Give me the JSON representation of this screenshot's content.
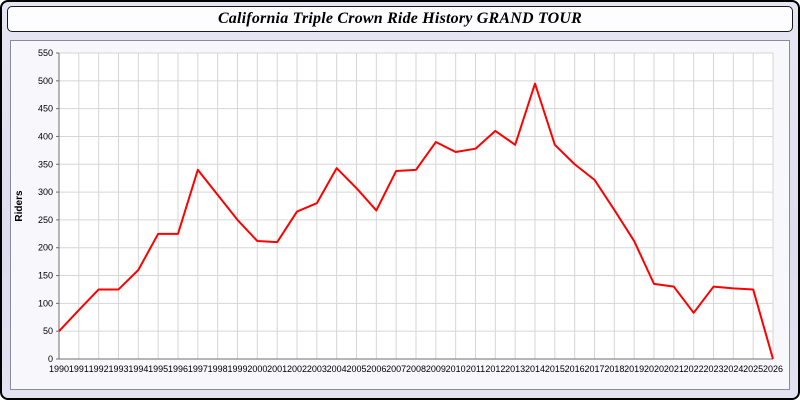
{
  "title": "California Triple Crown Ride History GRAND TOUR",
  "colors": {
    "line": "#ff0000",
    "outer_background": "#e0e0ef",
    "panel_background": "#f7f7fc",
    "plot_background": "#ffffff",
    "grid": "#d6d6d6",
    "axis": "#707070",
    "text": "#000000"
  },
  "chart_data": {
    "type": "line",
    "title": "California Triple Crown Ride History GRAND TOUR",
    "xlabel": "",
    "ylabel": "Riders",
    "ylim": [
      0,
      550
    ],
    "ytick_step": 50,
    "grid": true,
    "legend": "none",
    "x": [
      1990,
      1991,
      1992,
      1993,
      1994,
      1995,
      1996,
      1997,
      1998,
      1999,
      2000,
      2001,
      2002,
      2003,
      2004,
      2005,
      2006,
      2007,
      2008,
      2009,
      2010,
      2011,
      2012,
      2013,
      2014,
      2015,
      2016,
      2017,
      2018,
      2019,
      2020,
      2021,
      2022,
      2023,
      2024,
      2025,
      2026
    ],
    "series": [
      {
        "name": "Riders",
        "values": [
          50,
          88,
          125,
          125,
          160,
          225,
          225,
          340,
          295,
          250,
          212,
          210,
          265,
          280,
          343,
          307,
          267,
          338,
          340,
          390,
          372,
          378,
          410,
          385,
          495,
          385,
          350,
          322,
          268,
          212,
          135,
          130,
          83,
          130,
          127,
          125,
          0
        ]
      }
    ]
  }
}
